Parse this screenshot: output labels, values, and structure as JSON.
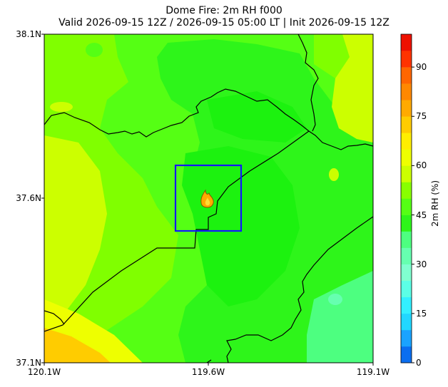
{
  "title": {
    "line1": "Dome Fire: 2m RH f000",
    "line2": "Valid 2026-09-15 12Z / 2026-09-15 05:00 LT | Init 2026-09-15 12Z"
  },
  "map": {
    "lat_ticks": [
      "38.1N",
      "37.6N",
      "37.1N"
    ],
    "lon_ticks": [
      "120.1W",
      "119.6W",
      "119.1W"
    ],
    "extent": {
      "lon_min": -120.1,
      "lon_max": -119.1,
      "lat_min": 37.1,
      "lat_max": 38.1
    },
    "focus_box": {
      "lon_min": -119.7,
      "lon_max": -119.5,
      "lat_min": 37.5,
      "lat_max": 37.7,
      "color": "#1414ff"
    },
    "fire_marker": {
      "lon": -119.58,
      "lat": 37.6,
      "icon": "fire-icon"
    }
  },
  "colorbar": {
    "label": "2m RH (%)",
    "ticks": [
      "0",
      "15",
      "30",
      "45",
      "60",
      "75",
      "90"
    ],
    "range": [
      0,
      100
    ],
    "levels": [
      {
        "from": 0,
        "to": 5,
        "color": "#0a6ef0"
      },
      {
        "from": 5,
        "to": 10,
        "color": "#1aa3ff"
      },
      {
        "from": 10,
        "to": 15,
        "color": "#22d7ff"
      },
      {
        "from": 15,
        "to": 20,
        "color": "#33f0ff"
      },
      {
        "from": 20,
        "to": 25,
        "color": "#5cffe6"
      },
      {
        "from": 25,
        "to": 30,
        "color": "#80ffd0"
      },
      {
        "from": 30,
        "to": 35,
        "color": "#66ffb0"
      },
      {
        "from": 35,
        "to": 40,
        "color": "#4dff80"
      },
      {
        "from": 40,
        "to": 45,
        "color": "#2ef51a"
      },
      {
        "from": 45,
        "to": 50,
        "color": "#55ff14"
      },
      {
        "from": 50,
        "to": 55,
        "color": "#88ff00"
      },
      {
        "from": 55,
        "to": 60,
        "color": "#ccff00"
      },
      {
        "from": 60,
        "to": 65,
        "color": "#eeff00"
      },
      {
        "from": 65,
        "to": 70,
        "color": "#ffee00"
      },
      {
        "from": 70,
        "to": 75,
        "color": "#ffcc00"
      },
      {
        "from": 75,
        "to": 80,
        "color": "#ffaa00"
      },
      {
        "from": 80,
        "to": 85,
        "color": "#ff8800"
      },
      {
        "from": 85,
        "to": 90,
        "color": "#ff6600"
      },
      {
        "from": 90,
        "to": 95,
        "color": "#ff3300"
      },
      {
        "from": 95,
        "to": 100,
        "color": "#ee1100"
      }
    ]
  }
}
